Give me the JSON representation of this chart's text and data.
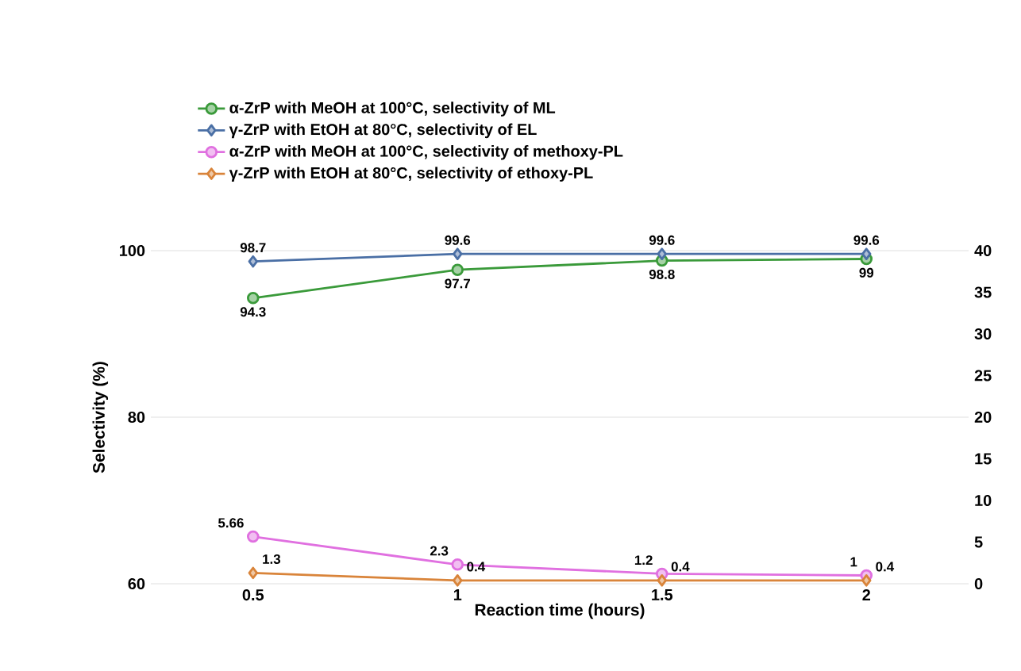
{
  "chart_data": {
    "type": "line",
    "xlabel": "Reaction time (hours)",
    "ylabel": "Selectivity (%)",
    "categories": [
      "0.5",
      "1",
      "1.5",
      "2"
    ],
    "ylim": [
      60,
      100
    ],
    "yticks": [
      60,
      80,
      100
    ],
    "y2lim": [
      0,
      40
    ],
    "y2ticks": [
      0,
      5,
      10,
      15,
      20,
      25,
      30,
      35,
      40
    ],
    "grid": "y",
    "legend": "top",
    "data_labels": true,
    "series": [
      {
        "name": "α-ZrP with MeOH at 100°C, selectivity of ML",
        "color": "#3a9a3a",
        "marker": "circle",
        "values": [
          94.3,
          97.7,
          98.8,
          99
        ]
      },
      {
        "name": "γ-ZrP with EtOH at 80°C, selectivity of EL",
        "color": "#4a6fa5",
        "marker": "diamond",
        "values": [
          98.7,
          99.6,
          99.6,
          99.6
        ]
      },
      {
        "name": "α-ZrP with MeOH at 100°C, selectivity of methoxy-PL",
        "color": "#e070e0",
        "marker": "circle",
        "axis": "y2",
        "values": [
          5.66,
          2.3,
          1.2,
          1
        ]
      },
      {
        "name": "γ-ZrP with EtOH at 80°C, selectivity of ethoxy-PL",
        "color": "#d9843a",
        "marker": "diamond",
        "axis": "y2",
        "values": [
          1.3,
          0.4,
          0.4,
          0.4
        ]
      }
    ]
  }
}
